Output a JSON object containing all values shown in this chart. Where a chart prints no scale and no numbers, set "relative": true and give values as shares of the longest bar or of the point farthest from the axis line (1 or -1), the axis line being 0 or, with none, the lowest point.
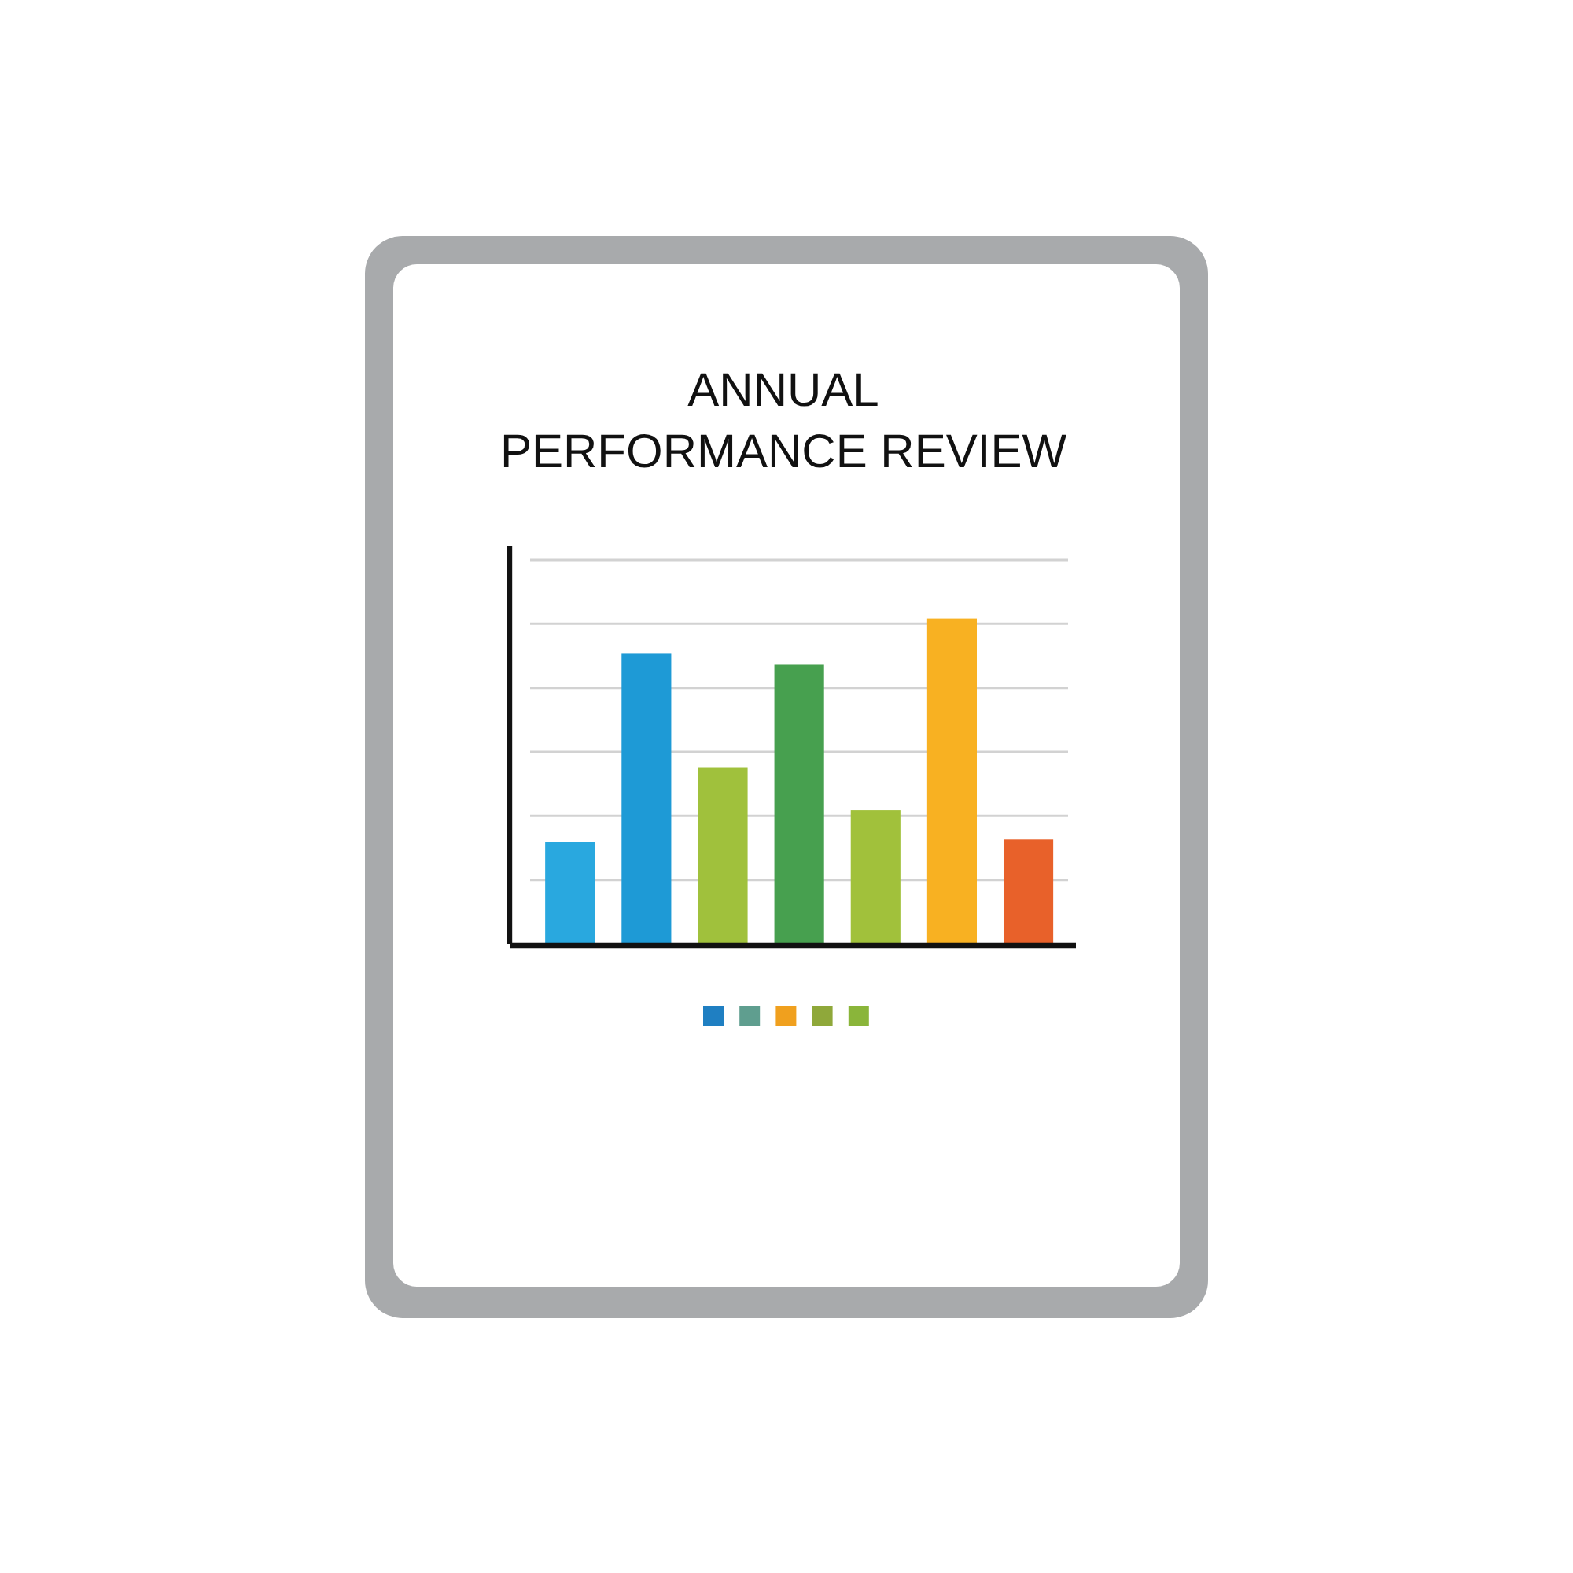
{
  "chart_data": {
    "type": "bar",
    "title": "ANNUAL\nPERFORMANCE REVIEW",
    "categories": [
      null,
      null,
      null,
      null,
      null,
      null,
      null
    ],
    "values": [
      0.314,
      0.894,
      0.543,
      0.86,
      0.411,
      1,
      0.321
    ],
    "colors": [
      "#29a8df",
      "#1e9ad6",
      "#a0c13c",
      "#47a04f",
      "#a1c13b",
      "#f8b122",
      "#e8612a"
    ],
    "relative": true,
    "grid": true
  }
}
